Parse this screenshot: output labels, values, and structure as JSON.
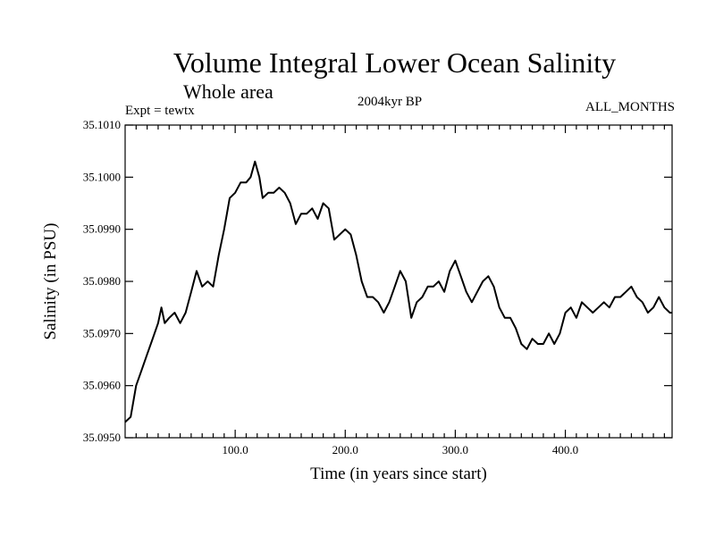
{
  "chart_data": {
    "type": "line",
    "title": "Volume Integral Lower Ocean Salinity",
    "subtitle": "Whole area",
    "expt_label": "Expt = tewtx",
    "period_label": "2004kyr BP",
    "months_label": "ALL_MONTHS",
    "xlabel": "Time (in years since start)",
    "ylabel": "Salinity (in PSU)",
    "xlim": [
      0,
      497
    ],
    "ylim": [
      35.095,
      35.101
    ],
    "x_ticks": [
      100,
      200,
      300,
      400
    ],
    "x_tick_labels": [
      "100.0",
      "200.0",
      "300.0",
      "400.0"
    ],
    "y_ticks": [
      35.095,
      35.096,
      35.097,
      35.098,
      35.099,
      35.1,
      35.101
    ],
    "y_tick_labels": [
      "35.0950",
      "35.0960",
      "35.0970",
      "35.0980",
      "35.0990",
      "35.1000",
      "35.1010"
    ],
    "series": [
      {
        "name": "Lower ocean salinity",
        "x": [
          0,
          5,
          10,
          15,
          20,
          25,
          30,
          33,
          36,
          40,
          45,
          50,
          55,
          60,
          65,
          70,
          75,
          80,
          85,
          90,
          95,
          100,
          105,
          110,
          114,
          118,
          122,
          125,
          130,
          135,
          140,
          145,
          150,
          155,
          160,
          165,
          170,
          175,
          180,
          185,
          190,
          195,
          200,
          205,
          210,
          215,
          220,
          225,
          230,
          235,
          240,
          245,
          250,
          255,
          260,
          265,
          270,
          275,
          280,
          285,
          290,
          295,
          300,
          305,
          310,
          315,
          320,
          325,
          330,
          335,
          340,
          345,
          350,
          355,
          360,
          365,
          370,
          375,
          380,
          385,
          390,
          395,
          400,
          405,
          410,
          415,
          420,
          425,
          430,
          435,
          440,
          445,
          450,
          455,
          460,
          465,
          470,
          475,
          480,
          485,
          490,
          495,
          497
        ],
        "y": [
          35.0953,
          35.0954,
          35.096,
          35.0963,
          35.0966,
          35.0969,
          35.0972,
          35.0975,
          35.0972,
          35.0973,
          35.0974,
          35.0972,
          35.0974,
          35.0978,
          35.0982,
          35.0979,
          35.098,
          35.0979,
          35.0985,
          35.099,
          35.0996,
          35.0997,
          35.0999,
          35.0999,
          35.1,
          35.1003,
          35.1,
          35.0996,
          35.0997,
          35.0997,
          35.0998,
          35.0997,
          35.0995,
          35.0991,
          35.0993,
          35.0993,
          35.0994,
          35.0992,
          35.0995,
          35.0994,
          35.0988,
          35.0989,
          35.099,
          35.0989,
          35.0985,
          35.098,
          35.0977,
          35.0977,
          35.0976,
          35.0974,
          35.0976,
          35.0979,
          35.0982,
          35.098,
          35.0973,
          35.0976,
          35.0977,
          35.0979,
          35.0979,
          35.098,
          35.0978,
          35.0982,
          35.0984,
          35.0981,
          35.0978,
          35.0976,
          35.0978,
          35.098,
          35.0981,
          35.0979,
          35.0975,
          35.0973,
          35.0973,
          35.0971,
          35.0968,
          35.0967,
          35.0969,
          35.0968,
          35.0968,
          35.097,
          35.0968,
          35.097,
          35.0974,
          35.0975,
          35.0973,
          35.0976,
          35.0975,
          35.0974,
          35.0975,
          35.0976,
          35.0975,
          35.0977,
          35.0977,
          35.0978,
          35.0979,
          35.0977,
          35.0976,
          35.0974,
          35.0975,
          35.0977,
          35.0975,
          35.0974,
          35.0974
        ]
      }
    ]
  }
}
